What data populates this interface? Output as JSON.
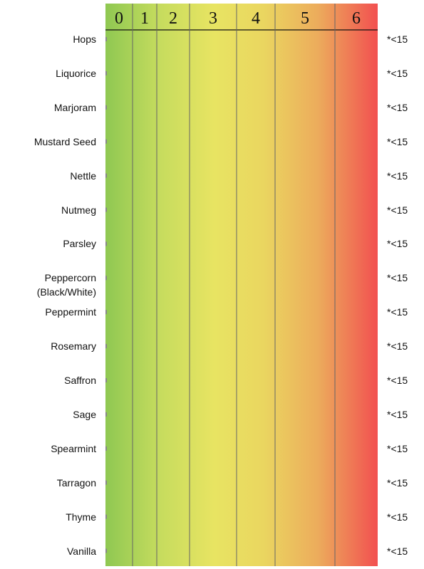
{
  "scale": {
    "classes": [
      "0",
      "1",
      "2",
      "3",
      "4",
      "5",
      "6"
    ]
  },
  "rows": [
    {
      "name": "Hops",
      "result": "*<15"
    },
    {
      "name": "Liquorice",
      "result": "*<15"
    },
    {
      "name": "Marjoram",
      "result": "*<15"
    },
    {
      "name": "Mustard Seed",
      "result": "*<15"
    },
    {
      "name": "Nettle",
      "result": "*<15"
    },
    {
      "name": "Nutmeg",
      "result": "*<15"
    },
    {
      "name": "Parsley",
      "result": "*<15"
    },
    {
      "name": "Peppercorn (Black/White)",
      "result": "*<15"
    },
    {
      "name": "Peppermint",
      "result": "*<15"
    },
    {
      "name": "Rosemary",
      "result": "*<15"
    },
    {
      "name": "Saffron",
      "result": "*<15"
    },
    {
      "name": "Sage",
      "result": "*<15"
    },
    {
      "name": "Spearmint",
      "result": "*<15"
    },
    {
      "name": "Tarragon",
      "result": "*<15"
    },
    {
      "name": "Thyme",
      "result": "*<15"
    },
    {
      "name": "Vanilla",
      "result": "*<15"
    }
  ]
}
